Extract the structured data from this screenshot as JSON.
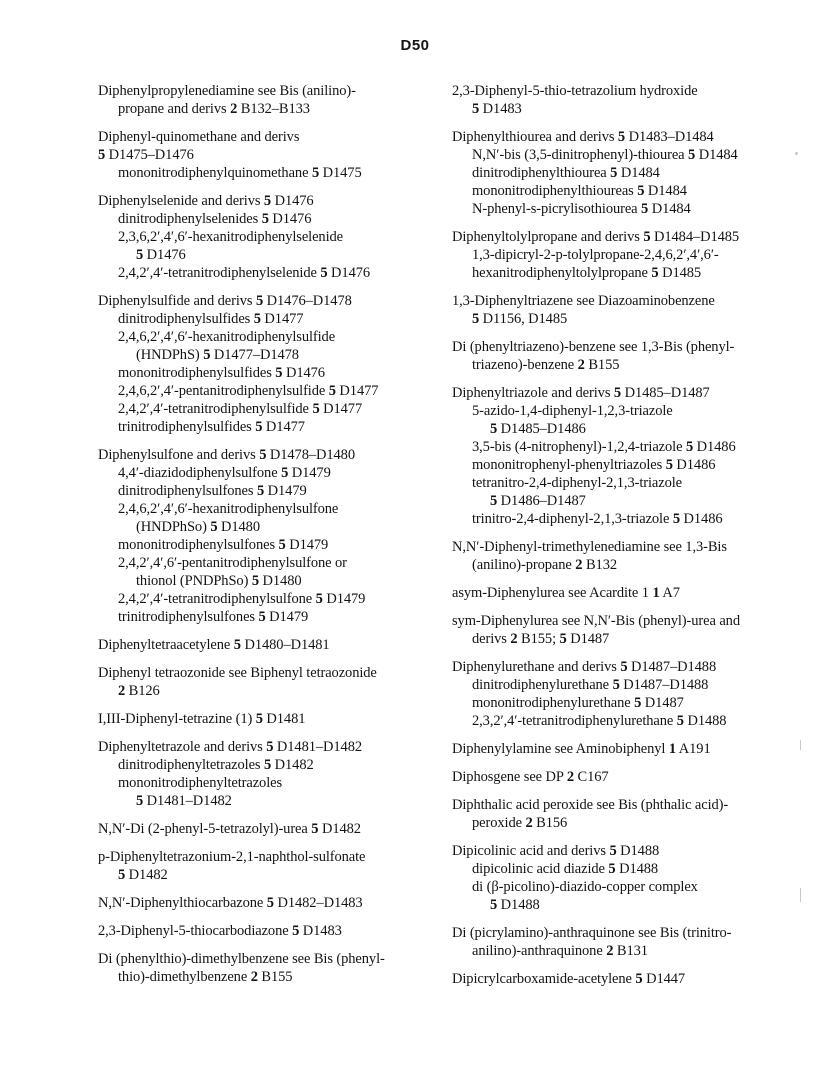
{
  "page": {
    "header": "D50"
  },
  "colors": {
    "background": "#ffffff",
    "ink": "#141414"
  },
  "index": {
    "left_column": [
      {
        "lines": [
          {
            "indent": 0,
            "text": "Diphenylpropylenediamine see Bis (anilino)-"
          },
          {
            "indent": 1,
            "text": "propane and derivs 2 B132–B133"
          }
        ]
      },
      {
        "lines": [
          {
            "indent": 0,
            "text": "Diphenyl-quinomethane and derivs"
          },
          {
            "indent": 0,
            "text": "5 D1475–D1476"
          },
          {
            "indent": 1,
            "text": "mononitrodiphenylquinomethane 5 D1475"
          }
        ]
      },
      {
        "lines": [
          {
            "indent": 0,
            "text": "Diphenylselenide and derivs 5 D1476"
          },
          {
            "indent": 1,
            "text": "dinitrodiphenylselenides 5 D1476"
          },
          {
            "indent": 1,
            "text": "2,3,6,2′,4′,6′-hexanitrodiphenylselenide"
          },
          {
            "indent": 2,
            "text": "5 D1476"
          },
          {
            "indent": 1,
            "text": "2,4,2′,4′-tetranitrodiphenylselenide 5 D1476"
          }
        ]
      },
      {
        "lines": [
          {
            "indent": 0,
            "text": "Diphenylsulfide and derivs 5 D1476–D1478"
          },
          {
            "indent": 1,
            "text": "dinitrodiphenylsulfides 5 D1477"
          },
          {
            "indent": 1,
            "text": "2,4,6,2′,4′,6′-hexanitrodiphenylsulfide"
          },
          {
            "indent": 2,
            "text": "(HNDPhS) 5 D1477–D1478"
          },
          {
            "indent": 1,
            "text": "mononitrodiphenylsulfides 5 D1476"
          },
          {
            "indent": 1,
            "text": "2,4,6,2′,4′-pentanitrodiphenylsulfide 5 D1477"
          },
          {
            "indent": 1,
            "text": "2,4,2′,4′-tetranitrodiphenylsulfide 5 D1477"
          },
          {
            "indent": 1,
            "text": "trinitrodiphenylsulfides 5 D1477"
          }
        ]
      },
      {
        "lines": [
          {
            "indent": 0,
            "text": "Diphenylsulfone and derivs 5 D1478–D1480"
          },
          {
            "indent": 1,
            "text": "4,4′-diazidodiphenylsulfone 5 D1479"
          },
          {
            "indent": 1,
            "text": "dinitrodiphenylsulfones 5 D1479"
          },
          {
            "indent": 1,
            "text": "2,4,6,2′,4′,6′-hexanitrodiphenylsulfone"
          },
          {
            "indent": 2,
            "text": "(HNDPhSo) 5 D1480"
          },
          {
            "indent": 1,
            "text": "mononitrodiphenylsulfones 5 D1479"
          },
          {
            "indent": 1,
            "text": "2,4,2′,4′,6′-pentanitrodiphenylsulfone or"
          },
          {
            "indent": 2,
            "text": "thionol (PNDPhSo) 5 D1480"
          },
          {
            "indent": 1,
            "text": "2,4,2′,4′-tetranitrodiphenylsulfone 5 D1479"
          },
          {
            "indent": 1,
            "text": "trinitrodiphenylsulfones 5 D1479"
          }
        ]
      },
      {
        "lines": [
          {
            "indent": 0,
            "text": "Diphenyltetraacetylene 5 D1480–D1481"
          }
        ]
      },
      {
        "lines": [
          {
            "indent": 0,
            "text": "Diphenyl tetraozonide see Biphenyl tetraozonide"
          },
          {
            "indent": 1,
            "text": "2 B126"
          }
        ]
      },
      {
        "lines": [
          {
            "indent": 0,
            "text": "I,III-Diphenyl-tetrazine (1) 5 D1481"
          }
        ]
      },
      {
        "lines": [
          {
            "indent": 0,
            "text": "Diphenyltetrazole and derivs 5 D1481–D1482"
          },
          {
            "indent": 1,
            "text": "dinitrodiphenyltetrazoles 5 D1482"
          },
          {
            "indent": 1,
            "text": "mononitrodiphenyltetrazoles"
          },
          {
            "indent": 2,
            "text": "5 D1481–D1482"
          }
        ]
      },
      {
        "lines": [
          {
            "indent": 0,
            "text": "N,N′-Di (2-phenyl-5-tetrazolyl)-urea 5 D1482"
          }
        ]
      },
      {
        "lines": [
          {
            "indent": 0,
            "text": "p-Diphenyltetrazonium-2,1-naphthol-sulfonate"
          },
          {
            "indent": 1,
            "text": "5 D1482"
          }
        ]
      },
      {
        "lines": [
          {
            "indent": 0,
            "text": "N,N′-Diphenylthiocarbazone 5 D1482–D1483"
          }
        ]
      },
      {
        "lines": [
          {
            "indent": 0,
            "text": "2,3-Diphenyl-5-thiocarbodiazone 5 D1483"
          }
        ]
      },
      {
        "lines": [
          {
            "indent": 0,
            "text": "Di (phenylthio)-dimethylbenzene see Bis (phenyl-"
          },
          {
            "indent": 1,
            "text": "thio)-dimethylbenzene 2 B155"
          }
        ]
      }
    ],
    "right_column": [
      {
        "lines": [
          {
            "indent": 0,
            "text": "2,3-Diphenyl-5-thio-tetrazolium hydroxide"
          },
          {
            "indent": 1,
            "text": "5 D1483"
          }
        ]
      },
      {
        "lines": [
          {
            "indent": 0,
            "text": "Diphenylthiourea and derivs 5 D1483–D1484"
          },
          {
            "indent": 1,
            "text": "N,N′-bis (3,5-dinitrophenyl)-thiourea 5 D1484"
          },
          {
            "indent": 1,
            "text": "dinitrodiphenylthiourea 5 D1484"
          },
          {
            "indent": 1,
            "text": "mononitrodiphenylthioureas 5 D1484"
          },
          {
            "indent": 1,
            "text": "N-phenyl-s-picrylisothiourea 5 D1484"
          }
        ]
      },
      {
        "lines": [
          {
            "indent": 0,
            "text": "Diphenyltolylpropane and derivs 5 D1484–D1485"
          },
          {
            "indent": 1,
            "text": "1,3-dipicryl-2-p-tolylpropane-2,4,6,2′,4′,6′-"
          },
          {
            "indent": 1,
            "text": "hexanitrodiphenyltolylpropane 5 D1485"
          }
        ]
      },
      {
        "lines": [
          {
            "indent": 0,
            "text": "1,3-Diphenyltriazene see Diazoaminobenzene"
          },
          {
            "indent": 1,
            "text": "5 D1156, D1485"
          }
        ]
      },
      {
        "lines": [
          {
            "indent": 0,
            "text": "Di (phenyltriazeno)-benzene see 1,3-Bis (phenyl-"
          },
          {
            "indent": 1,
            "text": "triazeno)-benzene 2 B155"
          }
        ]
      },
      {
        "lines": [
          {
            "indent": 0,
            "text": "Diphenyltriazole and derivs 5 D1485–D1487"
          },
          {
            "indent": 1,
            "text": "5-azido-1,4-diphenyl-1,2,3-triazole"
          },
          {
            "indent": 2,
            "text": "5 D1485–D1486"
          },
          {
            "indent": 1,
            "text": "3,5-bis (4-nitrophenyl)-1,2,4-triazole 5 D1486"
          },
          {
            "indent": 1,
            "text": "mononitrophenyl-phenyltriazoles 5 D1486"
          },
          {
            "indent": 1,
            "text": "tetranitro-2,4-diphenyl-2,1,3-triazole"
          },
          {
            "indent": 2,
            "text": "5 D1486–D1487"
          },
          {
            "indent": 1,
            "text": "trinitro-2,4-diphenyl-2,1,3-triazole 5 D1486"
          }
        ]
      },
      {
        "lines": [
          {
            "indent": 0,
            "text": "N,N′-Diphenyl-trimethylenediamine see 1,3-Bis"
          },
          {
            "indent": 1,
            "text": "(anilino)-propane 2 B132"
          }
        ]
      },
      {
        "lines": [
          {
            "indent": 0,
            "text": "asym-Diphenylurea see Acardite 1 1 A7"
          }
        ]
      },
      {
        "lines": [
          {
            "indent": 0,
            "text": "sym-Diphenylurea see N,N′-Bis (phenyl)-urea and"
          },
          {
            "indent": 1,
            "text": "derivs 2 B155; 5 D1487"
          }
        ]
      },
      {
        "lines": [
          {
            "indent": 0,
            "text": "Diphenylurethane and derivs 5 D1487–D1488"
          },
          {
            "indent": 1,
            "text": "dinitrodiphenylurethane 5 D1487–D1488"
          },
          {
            "indent": 1,
            "text": "mononitrodiphenylurethane 5 D1487"
          },
          {
            "indent": 1,
            "text": "2,3,2′,4′-tetranitrodiphenylurethane 5 D1488"
          }
        ]
      },
      {
        "lines": [
          {
            "indent": 0,
            "text": "Diphenylylamine see Aminobiphenyl 1 A191"
          }
        ]
      },
      {
        "lines": [
          {
            "indent": 0,
            "text": "Diphosgene see DP 2 C167"
          }
        ]
      },
      {
        "lines": [
          {
            "indent": 0,
            "text": "Diphthalic acid peroxide see Bis (phthalic acid)-"
          },
          {
            "indent": 1,
            "text": "peroxide 2 B156"
          }
        ]
      },
      {
        "lines": [
          {
            "indent": 0,
            "text": "Dipicolinic acid and derivs 5 D1488"
          },
          {
            "indent": 1,
            "text": "dipicolinic acid diazide 5 D1488"
          },
          {
            "indent": 1,
            "text": "di (β-picolino)-diazido-copper complex"
          },
          {
            "indent": 2,
            "text": "5 D1488"
          }
        ]
      },
      {
        "lines": [
          {
            "indent": 0,
            "text": "Di (picrylamino)-anthraquinone see Bis (trinitro-"
          },
          {
            "indent": 1,
            "text": "anilino)-anthraquinone 2 B131"
          }
        ]
      },
      {
        "lines": [
          {
            "indent": 0,
            "text": "Dipicrylcarboxamide-acetylene 5 D1447"
          }
        ]
      }
    ]
  }
}
